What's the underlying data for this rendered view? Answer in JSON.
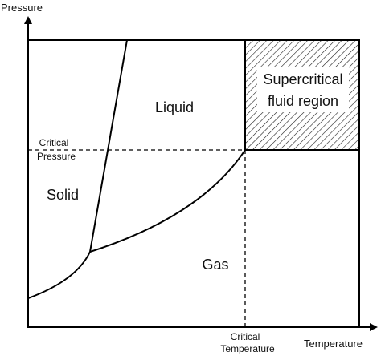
{
  "axes": {
    "y_label": "Pressure",
    "x_label": "Temperature"
  },
  "regions": {
    "liquid": "Liquid",
    "solid": "Solid",
    "gas": "Gas",
    "supercritical": [
      "Supercritical",
      "fluid region"
    ]
  },
  "critical": {
    "pressure": [
      "Critical",
      "Pressure"
    ],
    "temperature": [
      "Critical",
      "Temperature"
    ]
  }
}
